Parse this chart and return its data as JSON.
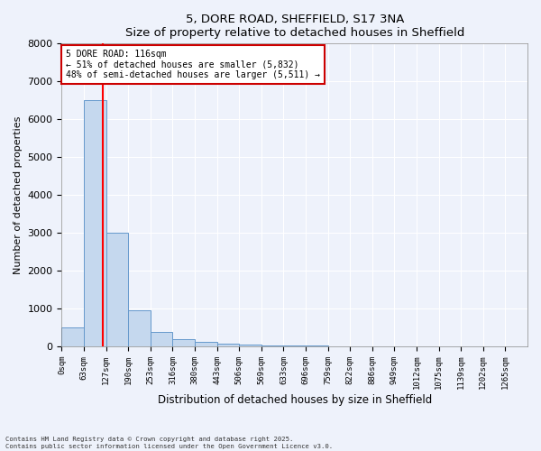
{
  "title_line1": "5, DORE ROAD, SHEFFIELD, S17 3NA",
  "title_line2": "Size of property relative to detached houses in Sheffield",
  "xlabel": "Distribution of detached houses by size in Sheffield",
  "ylabel": "Number of detached properties",
  "bin_labels": [
    "0sqm",
    "63sqm",
    "127sqm",
    "190sqm",
    "253sqm",
    "316sqm",
    "380sqm",
    "443sqm",
    "506sqm",
    "569sqm",
    "633sqm",
    "696sqm",
    "759sqm",
    "822sqm",
    "886sqm",
    "949sqm",
    "1012sqm",
    "1075sqm",
    "1139sqm",
    "1202sqm",
    "1265sqm"
  ],
  "bin_values": [
    500,
    6500,
    3000,
    950,
    380,
    200,
    130,
    80,
    50,
    30,
    20,
    15,
    10,
    8,
    5,
    4,
    3,
    2,
    2,
    1,
    1
  ],
  "bar_color": "#c5d8ee",
  "bar_edge_color": "#6699cc",
  "red_line_x": 116,
  "bin_width": 63,
  "annotation_text": "5 DORE ROAD: 116sqm\n← 51% of detached houses are smaller (5,832)\n48% of semi-detached houses are larger (5,511) →",
  "annotation_box_color": "#ffffff",
  "annotation_box_edge_color": "#cc0000",
  "ylim": [
    0,
    8000
  ],
  "yticks": [
    0,
    1000,
    2000,
    3000,
    4000,
    5000,
    6000,
    7000,
    8000
  ],
  "footer_line1": "Contains HM Land Registry data © Crown copyright and database right 2025.",
  "footer_line2": "Contains public sector information licensed under the Open Government Licence v3.0.",
  "background_color": "#eef2fb",
  "grid_color": "#ffffff"
}
